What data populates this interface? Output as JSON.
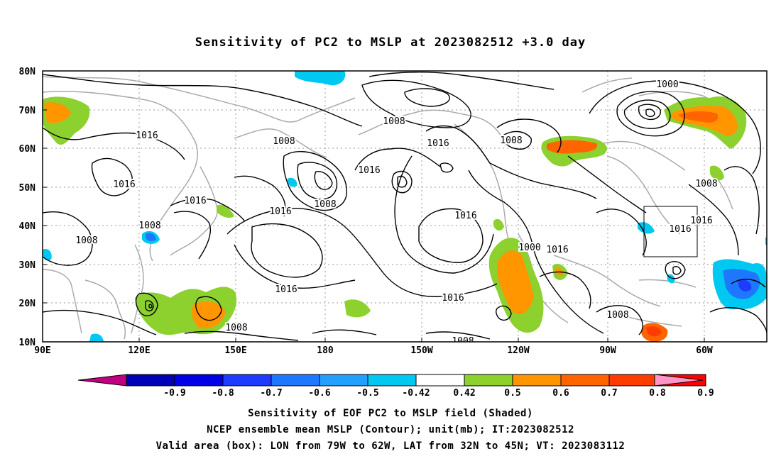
{
  "title": "Sensitivity of PC2 to MSLP at 2023082512 +3.0 day",
  "lat_labels": [
    "80N",
    "70N",
    "60N",
    "50N",
    "40N",
    "30N",
    "20N",
    "10N"
  ],
  "lon_labels": [
    "90E",
    "120E",
    "150E",
    "180",
    "150W",
    "120W",
    "90W",
    "60W"
  ],
  "contour_labels": [
    "1016",
    "1016",
    "1016",
    "1008",
    "1008",
    "1016",
    "1008",
    "1008",
    "1016",
    "1008",
    "1016",
    "1016",
    "1016",
    "1000",
    "1008",
    "1016",
    "1016",
    "1016",
    "1008",
    "1008",
    "1008",
    "1008",
    "1008",
    "1000",
    "1016",
    "1016"
  ],
  "colorbar": {
    "labels": [
      "-0.9",
      "-0.8",
      "-0.7",
      "-0.6",
      "-0.5",
      "-0.42",
      "0.42",
      "0.5",
      "0.6",
      "0.7",
      "0.8",
      "0.9"
    ],
    "colors": [
      "#c0007f",
      "#0000b4",
      "#0000e6",
      "#1e3cff",
      "#1e78ff",
      "#23a0ff",
      "#00c8f0",
      "#ffffff",
      "#8cd12e",
      "#ff9600",
      "#ff6400",
      "#ff3c00",
      "#ff0000",
      "#ff96c8"
    ]
  },
  "footer": {
    "line1": "Sensitivity of EOF PC2 to MSLP field (Shaded)",
    "line2": "NCEP ensemble mean MSLP (Contour); unit(mb); IT:2023082512",
    "line3": "Valid area (box): LON from 79W to 62W, LAT from 32N to 45N; VT: 2023083112"
  }
}
